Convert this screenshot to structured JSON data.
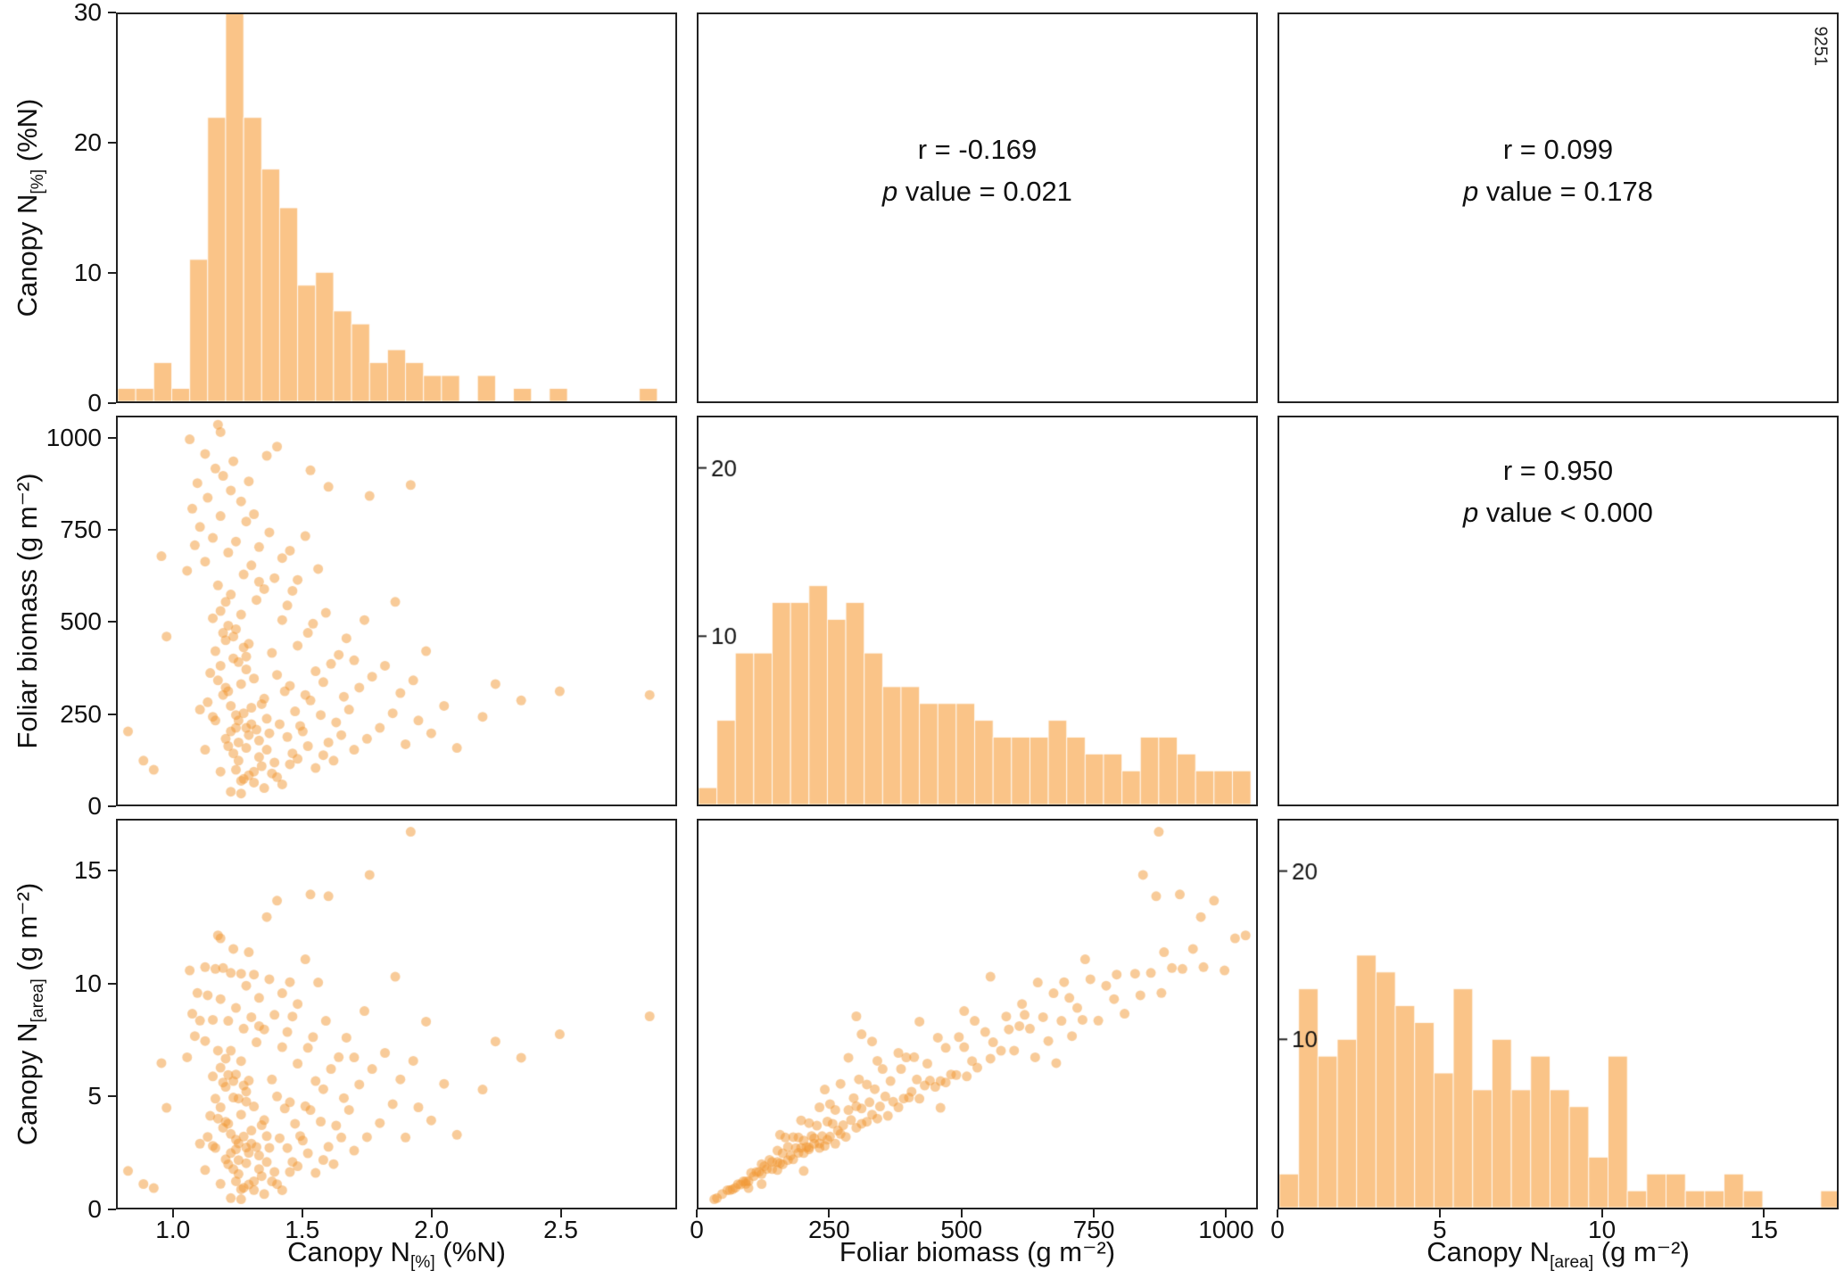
{
  "figure_id": "9251",
  "colors": {
    "hist_fill": "#FAC488",
    "point_rgba": "rgba(242,152,52,0.5)",
    "axis": "#222222",
    "text": "#111111"
  },
  "chart_data": {
    "type": "scatterplot-matrix",
    "n_points": 176,
    "variables": [
      {
        "key": "canopy_n_pct",
        "label_base": "Canopy N",
        "label_sub": "[%]",
        "label_unit": " (%N)",
        "domain": [
          0.78,
          2.95
        ],
        "ticks": [
          "1.0",
          "1.5",
          "2.0",
          "2.5"
        ],
        "tick_values": [
          1.0,
          1.5,
          2.0,
          2.5
        ],
        "hist_bin_start": 0.78,
        "hist_bin_width": 0.07
      },
      {
        "key": "foliar_biomass",
        "label_base": "Foliar biomass",
        "label_sub": "",
        "label_unit": " (g m⁻²)",
        "domain": [
          0,
          1060
        ],
        "ticks": [
          "0",
          "250",
          "500",
          "750",
          "1000"
        ],
        "tick_values": [
          0,
          250,
          500,
          750,
          1000
        ],
        "hist_bin_start": 0,
        "hist_bin_width": 35
      },
      {
        "key": "canopy_n_area",
        "label_base": "Canopy N",
        "label_sub": "[area]",
        "label_unit": " (g m⁻²)",
        "domain": [
          0,
          17.3
        ],
        "ticks": [
          "0",
          "5",
          "10",
          "15"
        ],
        "tick_values": [
          0,
          5,
          10,
          15
        ],
        "hist_bin_start": 0,
        "hist_bin_width": 0.6
      }
    ],
    "hist_count_axis_row1": {
      "max": 30,
      "ticks": [
        "0",
        "10",
        "20",
        "30"
      ],
      "tick_values": [
        0,
        10,
        20,
        30
      ]
    },
    "inner_hist_ticks": [
      10,
      20
    ],
    "inner_hist_ymax": 23,
    "correlations": [
      {
        "pair": "canopy_n_pct~foliar_biomass",
        "r": -0.169,
        "p": 0.021,
        "r_text": "r = -0.169",
        "p_sym": "p",
        "p_rest": " value = 0.021"
      },
      {
        "pair": "canopy_n_pct~canopy_n_area",
        "r": 0.099,
        "p": 0.178,
        "r_text": "r = 0.099",
        "p_sym": "p",
        "p_rest": " value = 0.178"
      },
      {
        "pair": "foliar_biomass~canopy_n_area",
        "r": 0.95,
        "p": "< 0.000",
        "r_text": "r = 0.950",
        "p_sym": "p",
        "p_rest": " value < 0.000"
      }
    ],
    "n_area_formula": "canopy_n_area = canopy_n_pct * foliar_biomass / 100",
    "points_n_pct_biomass": [
      [
        1.22,
        35
      ],
      [
        1.31,
        60
      ],
      [
        1.18,
        90
      ],
      [
        1.25,
        120
      ],
      [
        1.4,
        75
      ],
      [
        1.12,
        150
      ],
      [
        1.28,
        210
      ],
      [
        1.35,
        45
      ],
      [
        1.2,
        180
      ],
      [
        1.15,
        240
      ],
      [
        1.24,
        95
      ],
      [
        1.33,
        130
      ],
      [
        1.21,
        160
      ],
      [
        1.27,
        70
      ],
      [
        1.45,
        110
      ],
      [
        1.1,
        260
      ],
      [
        1.3,
        220
      ],
      [
        1.26,
        30
      ],
      [
        1.19,
        300
      ],
      [
        1.38,
        85
      ],
      [
        1.23,
        140
      ],
      [
        1.29,
        190
      ],
      [
        1.16,
        230
      ],
      [
        1.42,
        55
      ],
      [
        1.25,
        170
      ],
      [
        1.34,
        105
      ],
      [
        1.13,
        280
      ],
      [
        1.22,
        200
      ],
      [
        1.48,
        125
      ],
      [
        1.27,
        250
      ],
      [
        1.2,
        320
      ],
      [
        1.36,
        150
      ],
      [
        1.24,
        210
      ],
      [
        1.31,
        90
      ],
      [
        1.17,
        340
      ],
      [
        1.44,
        185
      ],
      [
        1.26,
        65
      ],
      [
        1.22,
        270
      ],
      [
        1.39,
        115
      ],
      [
        1.28,
        155
      ],
      [
        1.5,
        200
      ],
      [
        1.14,
        360
      ],
      [
        1.25,
        230
      ],
      [
        1.33,
        175
      ],
      [
        1.21,
        310
      ],
      [
        1.46,
        140
      ],
      [
        1.18,
        380
      ],
      [
        1.29,
        80
      ],
      [
        1.24,
        245
      ],
      [
        1.37,
        195
      ],
      [
        1.52,
        160
      ],
      [
        1.23,
        400
      ],
      [
        1.3,
        265
      ],
      [
        1.16,
        420
      ],
      [
        1.41,
        220
      ],
      [
        1.26,
        330
      ],
      [
        1.55,
        100
      ],
      [
        1.2,
        450
      ],
      [
        1.35,
        290
      ],
      [
        1.28,
        370
      ],
      [
        1.47,
        255
      ],
      [
        1.19,
        470
      ],
      [
        1.32,
        205
      ],
      [
        1.58,
        135
      ],
      [
        1.25,
        390
      ],
      [
        1.43,
        310
      ],
      [
        1.21,
        490
      ],
      [
        1.36,
        235
      ],
      [
        1.6,
        170
      ],
      [
        1.27,
        430
      ],
      [
        1.53,
        285
      ],
      [
        1.15,
        510
      ],
      [
        1.31,
        345
      ],
      [
        1.49,
        215
      ],
      [
        1.23,
        460
      ],
      [
        1.62,
        120
      ],
      [
        1.28,
        405
      ],
      [
        1.4,
        355
      ],
      [
        1.18,
        530
      ],
      [
        1.34,
        275
      ],
      [
        1.65,
        190
      ],
      [
        1.24,
        480
      ],
      [
        1.45,
        325
      ],
      [
        1.57,
        245
      ],
      [
        1.2,
        555
      ],
      [
        1.38,
        415
      ],
      [
        1.7,
        150
      ],
      [
        1.29,
        440
      ],
      [
        1.51,
        300
      ],
      [
        1.22,
        575
      ],
      [
        1.42,
        505
      ],
      [
        1.63,
        225
      ],
      [
        1.26,
        520
      ],
      [
        1.55,
        365
      ],
      [
        1.17,
        600
      ],
      [
        1.48,
        435
      ],
      [
        1.75,
        180
      ],
      [
        1.32,
        560
      ],
      [
        1.68,
        260
      ],
      [
        1.33,
        610
      ],
      [
        1.05,
        640
      ],
      [
        1.35,
        590
      ],
      [
        1.58,
        335
      ],
      [
        1.12,
        665
      ],
      [
        1.8,
        210
      ],
      [
        1.44,
        545
      ],
      [
        1.27,
        630
      ],
      [
        1.66,
        295
      ],
      [
        1.21,
        690
      ],
      [
        1.52,
        470
      ],
      [
        1.08,
        710
      ],
      [
        1.85,
        250
      ],
      [
        1.39,
        620
      ],
      [
        1.15,
        730
      ],
      [
        1.61,
        385
      ],
      [
        1.3,
        655
      ],
      [
        1.9,
        165
      ],
      [
        1.46,
        585
      ],
      [
        1.1,
        760
      ],
      [
        1.72,
        320
      ],
      [
        1.24,
        720
      ],
      [
        1.95,
        230
      ],
      [
        1.54,
        495
      ],
      [
        1.18,
        790
      ],
      [
        1.42,
        675
      ],
      [
        2.0,
        195
      ],
      [
        1.33,
        705
      ],
      [
        1.64,
        410
      ],
      [
        1.07,
        810
      ],
      [
        1.77,
        350
      ],
      [
        1.13,
        840
      ],
      [
        2.05,
        270
      ],
      [
        1.48,
        615
      ],
      [
        1.28,
        775
      ],
      [
        1.88,
        305
      ],
      [
        1.22,
        860
      ],
      [
        1.59,
        525
      ],
      [
        2.1,
        155
      ],
      [
        1.37,
        745
      ],
      [
        1.7,
        395
      ],
      [
        1.09,
        880
      ],
      [
        1.93,
        340
      ],
      [
        1.26,
        830
      ],
      [
        1.56,
        645
      ],
      [
        2.2,
        240
      ],
      [
        1.19,
        900
      ],
      [
        1.45,
        695
      ],
      [
        1.82,
        380
      ],
      [
        1.31,
        795
      ],
      [
        2.35,
        285
      ],
      [
        1.16,
        920
      ],
      [
        1.67,
        455
      ],
      [
        2.5,
        310
      ],
      [
        1.23,
        940
      ],
      [
        1.51,
        735
      ],
      [
        1.98,
        420
      ],
      [
        1.12,
        960
      ],
      [
        1.74,
        505
      ],
      [
        2.85,
        300
      ],
      [
        1.29,
        885
      ],
      [
        1.4,
        980
      ],
      [
        1.06,
        1000
      ],
      [
        1.6,
        870
      ],
      [
        1.18,
        1020
      ],
      [
        1.86,
        555
      ],
      [
        1.17,
        1040
      ],
      [
        1.53,
        915
      ],
      [
        2.25,
        330
      ],
      [
        1.36,
        955
      ],
      [
        0.95,
        680
      ],
      [
        0.82,
        200
      ],
      [
        0.88,
        120
      ],
      [
        0.92,
        95
      ],
      [
        0.97,
        460
      ],
      [
        1.92,
        875
      ],
      [
        1.76,
        845
      ]
    ]
  }
}
